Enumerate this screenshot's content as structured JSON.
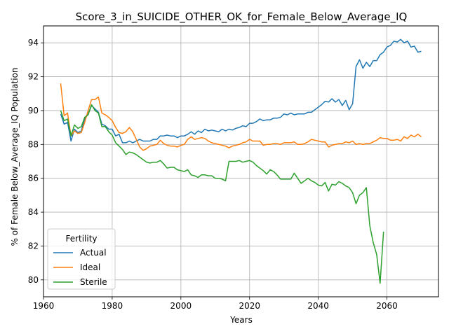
{
  "chart_data": {
    "type": "line",
    "title": "Score_3_in_SUICIDE_OTHER_OK_for_Female_Below_Average_IQ",
    "xlabel": "Years",
    "ylabel": "% of Female Below_Average_IQ Population",
    "xlim": [
      1960,
      2075
    ],
    "ylim": [
      79,
      95
    ],
    "xticks": [
      1960,
      1980,
      2000,
      2020,
      2040,
      2060
    ],
    "yticks": [
      80,
      82,
      84,
      86,
      88,
      90,
      92,
      94
    ],
    "grid": true,
    "legend": {
      "title": "Fertility",
      "position": "lower-left"
    },
    "series": [
      {
        "name": "Actual",
        "color": "#1f77b4",
        "x": [
          1965,
          1966,
          1967,
          1968,
          1969,
          1970,
          1971,
          1972,
          1973,
          1974,
          1975,
          1976,
          1977,
          1978,
          1979,
          1980,
          1981,
          1982,
          1983,
          1984,
          1985,
          1986,
          1987,
          1988,
          1989,
          1990,
          1991,
          1992,
          1993,
          1994,
          1995,
          1996,
          1997,
          1998,
          1999,
          2000,
          2001,
          2002,
          2003,
          2004,
          2005,
          2006,
          2007,
          2008,
          2009,
          2010,
          2011,
          2012,
          2013,
          2014,
          2015,
          2016,
          2017,
          2018,
          2019,
          2020,
          2021,
          2022,
          2023,
          2024,
          2025,
          2026,
          2027,
          2028,
          2029,
          2030,
          2031,
          2032,
          2033,
          2034,
          2035,
          2036,
          2037,
          2038,
          2039,
          2040,
          2041,
          2042,
          2043,
          2044,
          2045,
          2046,
          2047,
          2048,
          2049,
          2050,
          2051,
          2052,
          2053,
          2054,
          2055,
          2056,
          2057,
          2058,
          2059,
          2060,
          2061,
          2062,
          2063,
          2064,
          2065,
          2066,
          2067,
          2068,
          2069,
          2070
        ],
        "values": [
          89.8,
          89.2,
          89.3,
          88.2,
          88.9,
          88.7,
          88.8,
          89.5,
          89.8,
          90.3,
          90.1,
          89.9,
          89.2,
          89.1,
          88.9,
          88.9,
          88.5,
          88.6,
          88.1,
          88.1,
          88.2,
          88.1,
          88.2,
          88.3,
          88.2,
          88.2,
          88.2,
          88.3,
          88.3,
          88.5,
          88.5,
          88.55,
          88.5,
          88.5,
          88.4,
          88.5,
          88.5,
          88.6,
          88.75,
          88.6,
          88.8,
          88.7,
          88.9,
          88.8,
          88.85,
          88.8,
          88.75,
          88.9,
          88.8,
          88.9,
          88.85,
          88.95,
          89.0,
          89.1,
          89.05,
          89.25,
          89.25,
          89.35,
          89.5,
          89.4,
          89.45,
          89.45,
          89.55,
          89.55,
          89.6,
          89.8,
          89.75,
          89.85,
          89.75,
          89.8,
          89.8,
          89.8,
          89.9,
          89.9,
          90.05,
          90.2,
          90.35,
          90.55,
          90.5,
          90.7,
          90.5,
          90.65,
          90.3,
          90.6,
          90.05,
          90.4,
          92.6,
          93.0,
          92.5,
          92.85,
          92.6,
          92.95,
          92.95,
          93.3,
          93.45,
          93.75,
          93.85,
          94.1,
          94.05,
          94.2,
          94.0,
          94.1,
          93.75,
          93.8,
          93.45,
          93.5
        ]
      },
      {
        "name": "Ideal",
        "color": "#ff7f0e",
        "x": [
          1965,
          1966,
          1967,
          1968,
          1969,
          1970,
          1971,
          1972,
          1973,
          1974,
          1975,
          1976,
          1977,
          1978,
          1979,
          1980,
          1981,
          1982,
          1983,
          1984,
          1985,
          1986,
          1987,
          1988,
          1989,
          1990,
          1991,
          1992,
          1993,
          1994,
          1995,
          1996,
          1997,
          1998,
          1999,
          2000,
          2001,
          2002,
          2003,
          2004,
          2005,
          2006,
          2007,
          2008,
          2009,
          2010,
          2011,
          2012,
          2013,
          2014,
          2015,
          2016,
          2017,
          2018,
          2019,
          2020,
          2021,
          2022,
          2023,
          2024,
          2025,
          2026,
          2027,
          2028,
          2029,
          2030,
          2031,
          2032,
          2033,
          2034,
          2035,
          2036,
          2037,
          2038,
          2039,
          2040,
          2041,
          2042,
          2043,
          2044,
          2045,
          2046,
          2047,
          2048,
          2049,
          2050,
          2051,
          2052,
          2053,
          2054,
          2055,
          2056,
          2057,
          2058,
          2059,
          2060,
          2061,
          2062,
          2063,
          2064,
          2065,
          2066,
          2067,
          2068,
          2069,
          2070
        ],
        "values": [
          91.6,
          89.7,
          89.85,
          88.5,
          88.8,
          88.65,
          88.7,
          89.3,
          90.0,
          90.65,
          90.65,
          90.8,
          89.85,
          89.75,
          89.6,
          89.4,
          89.0,
          88.7,
          88.65,
          88.75,
          89.0,
          88.75,
          88.3,
          87.85,
          87.65,
          87.75,
          87.9,
          87.95,
          88.0,
          88.25,
          88.05,
          87.95,
          87.9,
          87.9,
          87.85,
          87.95,
          88.0,
          88.3,
          88.45,
          88.3,
          88.35,
          88.4,
          88.35,
          88.2,
          88.1,
          88.05,
          88.0,
          87.95,
          87.9,
          87.8,
          87.9,
          87.95,
          88.0,
          88.1,
          88.15,
          88.3,
          88.2,
          88.2,
          88.2,
          87.95,
          88.0,
          88.0,
          88.05,
          88.05,
          88.0,
          88.1,
          88.1,
          88.1,
          88.15,
          88.0,
          88.0,
          88.05,
          88.15,
          88.3,
          88.25,
          88.2,
          88.15,
          88.15,
          87.85,
          87.95,
          88.0,
          88.05,
          88.05,
          88.15,
          88.1,
          88.2,
          88.0,
          88.05,
          88.0,
          88.05,
          88.05,
          88.15,
          88.25,
          88.4,
          88.35,
          88.35,
          88.25,
          88.25,
          88.3,
          88.2,
          88.45,
          88.35,
          88.55,
          88.45,
          88.6,
          88.45
        ]
      },
      {
        "name": "Sterile",
        "color": "#2ca02c",
        "x": [
          1965,
          1966,
          1967,
          1968,
          1969,
          1970,
          1971,
          1972,
          1973,
          1974,
          1975,
          1976,
          1977,
          1978,
          1979,
          1980,
          1981,
          1982,
          1983,
          1984,
          1985,
          1986,
          1987,
          1988,
          1989,
          1990,
          1991,
          1992,
          1993,
          1994,
          1995,
          1996,
          1997,
          1998,
          1999,
          2000,
          2001,
          2002,
          2003,
          2004,
          2005,
          2006,
          2007,
          2008,
          2009,
          2010,
          2011,
          2012,
          2013,
          2014,
          2015,
          2016,
          2017,
          2018,
          2019,
          2020,
          2021,
          2022,
          2023,
          2024,
          2025,
          2026,
          2027,
          2028,
          2029,
          2030,
          2031,
          2032,
          2033,
          2034,
          2035,
          2036,
          2037,
          2038,
          2039,
          2040,
          2041,
          2042,
          2043,
          2044,
          2045,
          2046,
          2047,
          2048,
          2049,
          2050,
          2051,
          2052,
          2053,
          2054,
          2055,
          2056,
          2057,
          2058,
          2059
        ],
        "values": [
          90.0,
          89.4,
          89.5,
          88.5,
          89.15,
          88.95,
          89.05,
          89.6,
          89.75,
          90.35,
          90.0,
          89.85,
          89.05,
          89.05,
          88.75,
          88.55,
          88.1,
          87.9,
          87.7,
          87.4,
          87.55,
          87.5,
          87.4,
          87.25,
          87.1,
          86.95,
          86.9,
          86.95,
          86.95,
          87.05,
          86.85,
          86.6,
          86.65,
          86.65,
          86.5,
          86.45,
          86.4,
          86.5,
          86.2,
          86.15,
          86.05,
          86.2,
          86.2,
          86.15,
          86.15,
          86.0,
          86.0,
          85.95,
          85.85,
          87.0,
          87.0,
          87.0,
          87.05,
          86.95,
          87.0,
          87.05,
          86.95,
          86.75,
          86.6,
          86.45,
          86.25,
          86.5,
          86.4,
          86.2,
          85.95,
          85.95,
          85.95,
          85.95,
          86.3,
          86.0,
          85.7,
          85.85,
          86.0,
          85.85,
          85.75,
          85.6,
          85.55,
          85.75,
          85.25,
          85.65,
          85.6,
          85.8,
          85.7,
          85.55,
          85.45,
          85.15,
          84.5,
          85.0,
          85.15,
          85.45,
          83.2,
          82.2,
          81.5,
          79.8,
          82.85
        ]
      }
    ]
  }
}
